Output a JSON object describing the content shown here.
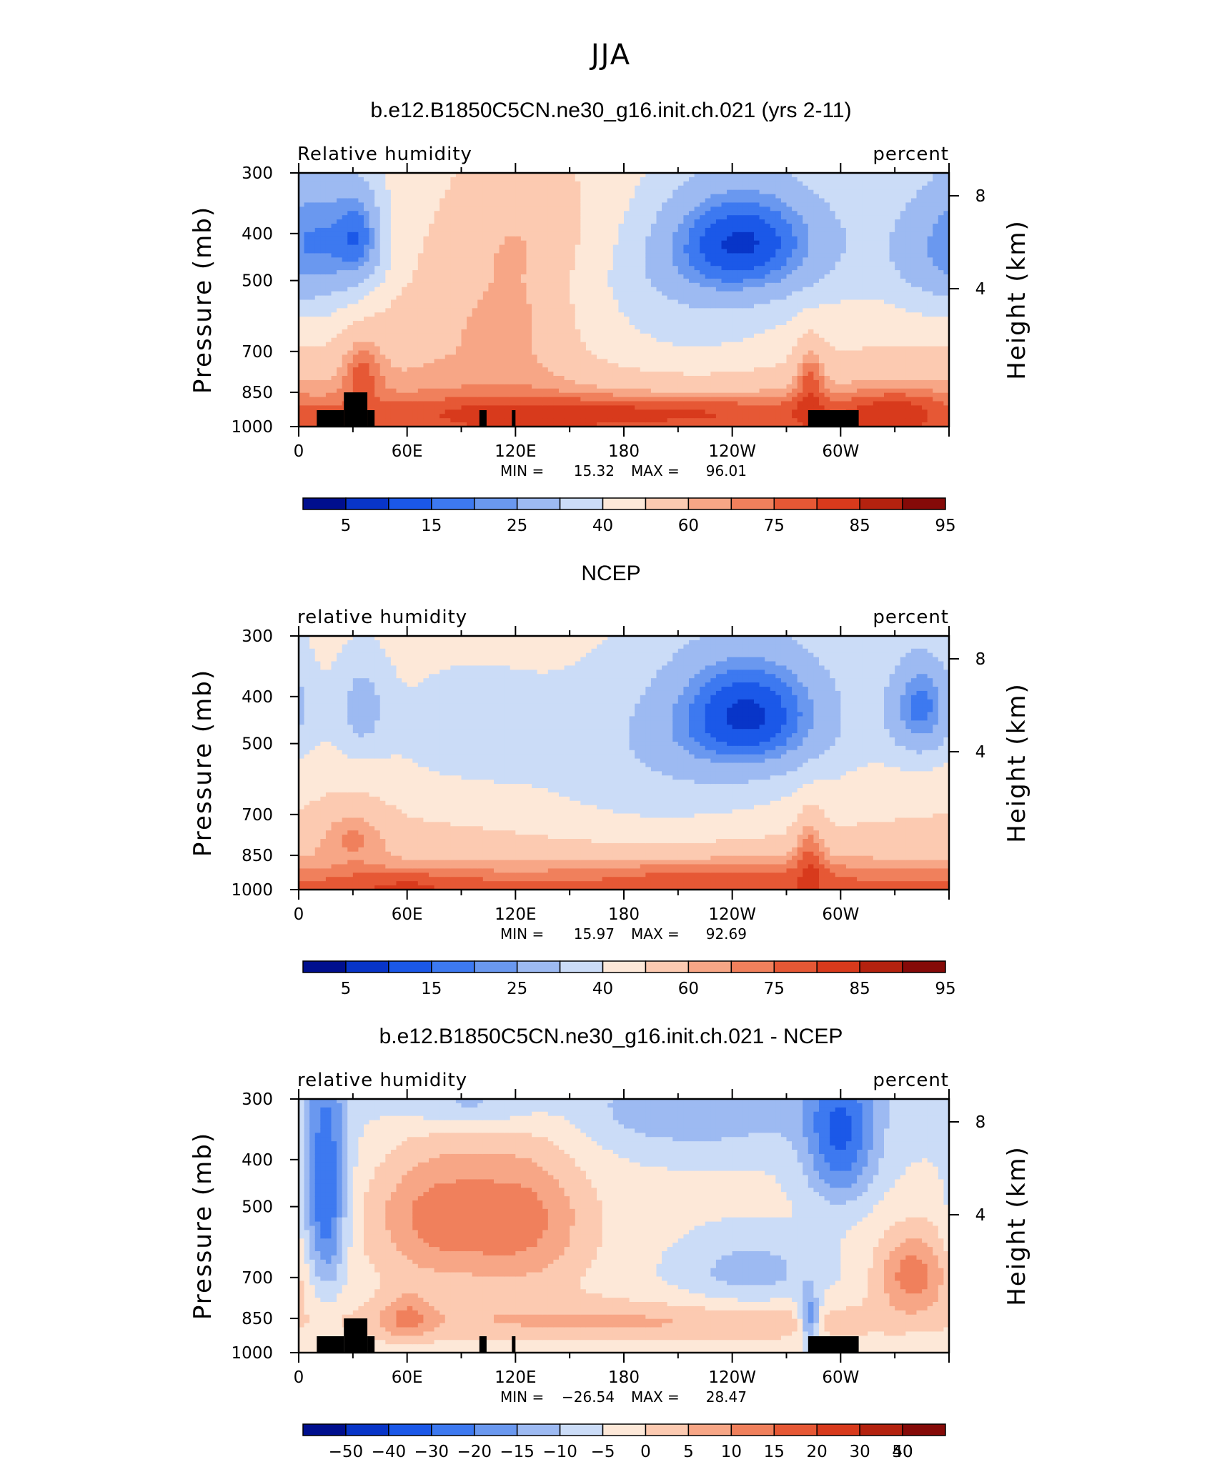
{
  "figure": {
    "title": "JJA"
  },
  "colors": {
    "rh_levels": [
      "#000f8e",
      "#0835c8",
      "#1b58e8",
      "#3d79f0",
      "#6a98ef",
      "#9dbaf2",
      "#cbdcf7",
      "#fde8d8",
      "#fccab1",
      "#f7a686",
      "#f0805c",
      "#e65835",
      "#d83a1c",
      "#b4220f",
      "#850a08"
    ],
    "diff_levels": [
      "#000f8e",
      "#0835c8",
      "#1b58e8",
      "#3d79f0",
      "#6a98ef",
      "#9dbaf2",
      "#cbdcf7",
      "#fde8d8",
      "#fccab1",
      "#f7a686",
      "#f0805c",
      "#e65835",
      "#d83a1c",
      "#b4220f",
      "#850a08"
    ],
    "land": "#000000"
  },
  "panels": [
    {
      "id": "model",
      "title": "b.e12.B1850C5CN.ne30_g16.init.ch.021 (yrs 2-11)",
      "left_label": "Relative humidity",
      "right_label": "percent",
      "min_label": "MIN =",
      "min_value": "15.32",
      "max_label": "MAX =",
      "max_value": "96.01",
      "colorbar_ticks": [
        "5",
        "15",
        "25",
        "40",
        "60",
        "75",
        "85",
        "95"
      ]
    },
    {
      "id": "obs",
      "title": "NCEP",
      "left_label": "relative humidity",
      "right_label": "percent",
      "min_label": "MIN =",
      "min_value": "15.97",
      "max_label": "MAX =",
      "max_value": "92.69",
      "colorbar_ticks": [
        "5",
        "15",
        "25",
        "40",
        "60",
        "75",
        "85",
        "95"
      ]
    },
    {
      "id": "diff",
      "title": "b.e12.B1850C5CN.ne30_g16.init.ch.021 - NCEP",
      "left_label": "relative humidity",
      "right_label": "percent",
      "min_label": "MIN =",
      "min_value": "−26.54",
      "max_label": "MAX =",
      "max_value": "28.47",
      "colorbar_ticks": [
        "−50",
        "−40",
        "−30",
        "−20",
        "−15",
        "−10",
        "−5",
        "0",
        "5",
        "10",
        "15",
        "20",
        "30",
        "40",
        "50"
      ]
    }
  ],
  "chart_data": {
    "type": "heatmap",
    "x_axis": {
      "ticks": [
        "0",
        "60E",
        "120E",
        "180",
        "120W",
        "60W"
      ],
      "tick_lon": [
        0,
        60,
        120,
        180,
        240,
        300
      ],
      "range": [
        0,
        360
      ]
    },
    "y_axis_left": {
      "label": "Pressure (mb)",
      "ticks": [
        "300",
        "400",
        "500",
        "700",
        "850",
        "1000"
      ],
      "tick_values": [
        300,
        400,
        500,
        700,
        850,
        1000
      ],
      "scale": "log",
      "range": [
        300,
        1000
      ]
    },
    "y_axis_right": {
      "label": "Height (km)",
      "ticks": [
        "8",
        "4"
      ],
      "tick_values": [
        8,
        4
      ]
    },
    "rh_contour_levels": [
      5,
      10,
      15,
      20,
      25,
      30,
      40,
      50,
      60,
      70,
      75,
      80,
      85,
      90,
      95
    ],
    "diff_contour_levels": [
      -50,
      -40,
      -30,
      -20,
      -15,
      -10,
      -5,
      0,
      5,
      10,
      15,
      20,
      30,
      40,
      50
    ],
    "land_masks": [
      {
        "lon": [
          10,
          25
        ],
        "p": [
          925,
          1000
        ]
      },
      {
        "lon": [
          25,
          38
        ],
        "p": [
          850,
          1000
        ]
      },
      {
        "lon": [
          38,
          42
        ],
        "p": [
          925,
          1000
        ]
      },
      {
        "lon": [
          100,
          104
        ],
        "p": [
          925,
          1000
        ]
      },
      {
        "lon": [
          118,
          120
        ],
        "p": [
          925,
          1000
        ]
      },
      {
        "lon": [
          282,
          310
        ],
        "p": [
          925,
          1000
        ]
      }
    ],
    "model_fields": {
      "stats": {
        "min": 15.32,
        "max": 96.01
      },
      "base": {
        "surface": 83,
        "p850": 72,
        "p700": 62,
        "p500": 55,
        "p300": 55
      },
      "features": [
        {
          "lon": 245,
          "p": 410,
          "dlon": 38,
          "dp": 90,
          "amp": -38
        },
        {
          "lon": 220,
          "p": 620,
          "dlon": 45,
          "dp": 160,
          "amp": -12
        },
        {
          "lon": 35,
          "p": 410,
          "dlon": 10,
          "dp": 70,
          "amp": -22
        },
        {
          "lon": 15,
          "p": 400,
          "dlon": 18,
          "dp": 120,
          "amp": -14
        },
        {
          "lon": 355,
          "p": 430,
          "dlon": 25,
          "dp": 110,
          "amp": -20
        },
        {
          "lon": 120,
          "p": 520,
          "dlon": 25,
          "dp": 200,
          "amp": 14
        },
        {
          "lon": 165,
          "p": 380,
          "dlon": 50,
          "dp": 90,
          "amp": 5
        },
        {
          "lon": 70,
          "p": 600,
          "dlon": 28,
          "dp": 160,
          "amp": 6
        },
        {
          "lon": 35,
          "p": 760,
          "dlon": 8,
          "dp": 90,
          "amp": 14
        },
        {
          "lon": 283,
          "p": 780,
          "dlon": 6,
          "dp": 100,
          "amp": 16
        },
        {
          "lon": 180,
          "p": 920,
          "dlon": 100,
          "dp": 45,
          "amp": 10
        },
        {
          "lon": 330,
          "p": 900,
          "dlon": 20,
          "dp": 60,
          "amp": 8
        }
      ]
    },
    "obs_fields": {
      "stats": {
        "min": 15.97,
        "max": 92.69
      },
      "base": {
        "surface": 82,
        "p850": 68,
        "p700": 60,
        "p500": 54,
        "p300": 54
      },
      "features": [
        {
          "lon": 250,
          "p": 430,
          "dlon": 35,
          "dp": 100,
          "amp": -35
        },
        {
          "lon": 345,
          "p": 420,
          "dlon": 14,
          "dp": 80,
          "amp": -30
        },
        {
          "lon": 35,
          "p": 420,
          "dlon": 10,
          "dp": 70,
          "amp": -18
        },
        {
          "lon": 90,
          "p": 480,
          "dlon": 30,
          "dp": 100,
          "amp": -8
        },
        {
          "lon": 200,
          "p": 600,
          "dlon": 60,
          "dp": 180,
          "amp": -12
        },
        {
          "lon": 30,
          "p": 760,
          "dlon": 14,
          "dp": 80,
          "amp": 12
        },
        {
          "lon": 283,
          "p": 800,
          "dlon": 6,
          "dp": 110,
          "amp": 14
        },
        {
          "lon": 230,
          "p": 920,
          "dlon": 60,
          "dp": 60,
          "amp": 8
        },
        {
          "lon": 60,
          "p": 960,
          "dlon": 30,
          "dp": 40,
          "amp": 6
        }
      ]
    },
    "diff_fields": {
      "stats": {
        "min": -26.54,
        "max": 28.47
      },
      "base": {
        "surface": 1,
        "p850": 4,
        "p700": 2,
        "p500": 2,
        "p300": -2
      },
      "features": [
        {
          "lon": 15,
          "p": 480,
          "dlon": 8,
          "dp": 170,
          "amp": -22
        },
        {
          "lon": 300,
          "p": 360,
          "dlon": 14,
          "dp": 90,
          "amp": -20
        },
        {
          "lon": 95,
          "p": 310,
          "dlon": 25,
          "dp": 25,
          "amp": -8
        },
        {
          "lon": 220,
          "p": 320,
          "dlon": 40,
          "dp": 40,
          "amp": -8
        },
        {
          "lon": 250,
          "p": 680,
          "dlon": 30,
          "dp": 90,
          "amp": -9
        },
        {
          "lon": 75,
          "p": 520,
          "dlon": 25,
          "dp": 130,
          "amp": 14
        },
        {
          "lon": 125,
          "p": 530,
          "dlon": 25,
          "dp": 140,
          "amp": 14
        },
        {
          "lon": 60,
          "p": 850,
          "dlon": 10,
          "dp": 70,
          "amp": 10
        },
        {
          "lon": 340,
          "p": 690,
          "dlon": 14,
          "dp": 90,
          "amp": 16
        },
        {
          "lon": 180,
          "p": 870,
          "dlon": 100,
          "dp": 60,
          "amp": 7
        },
        {
          "lon": 283,
          "p": 850,
          "dlon": 4,
          "dp": 70,
          "amp": -18
        }
      ]
    }
  }
}
